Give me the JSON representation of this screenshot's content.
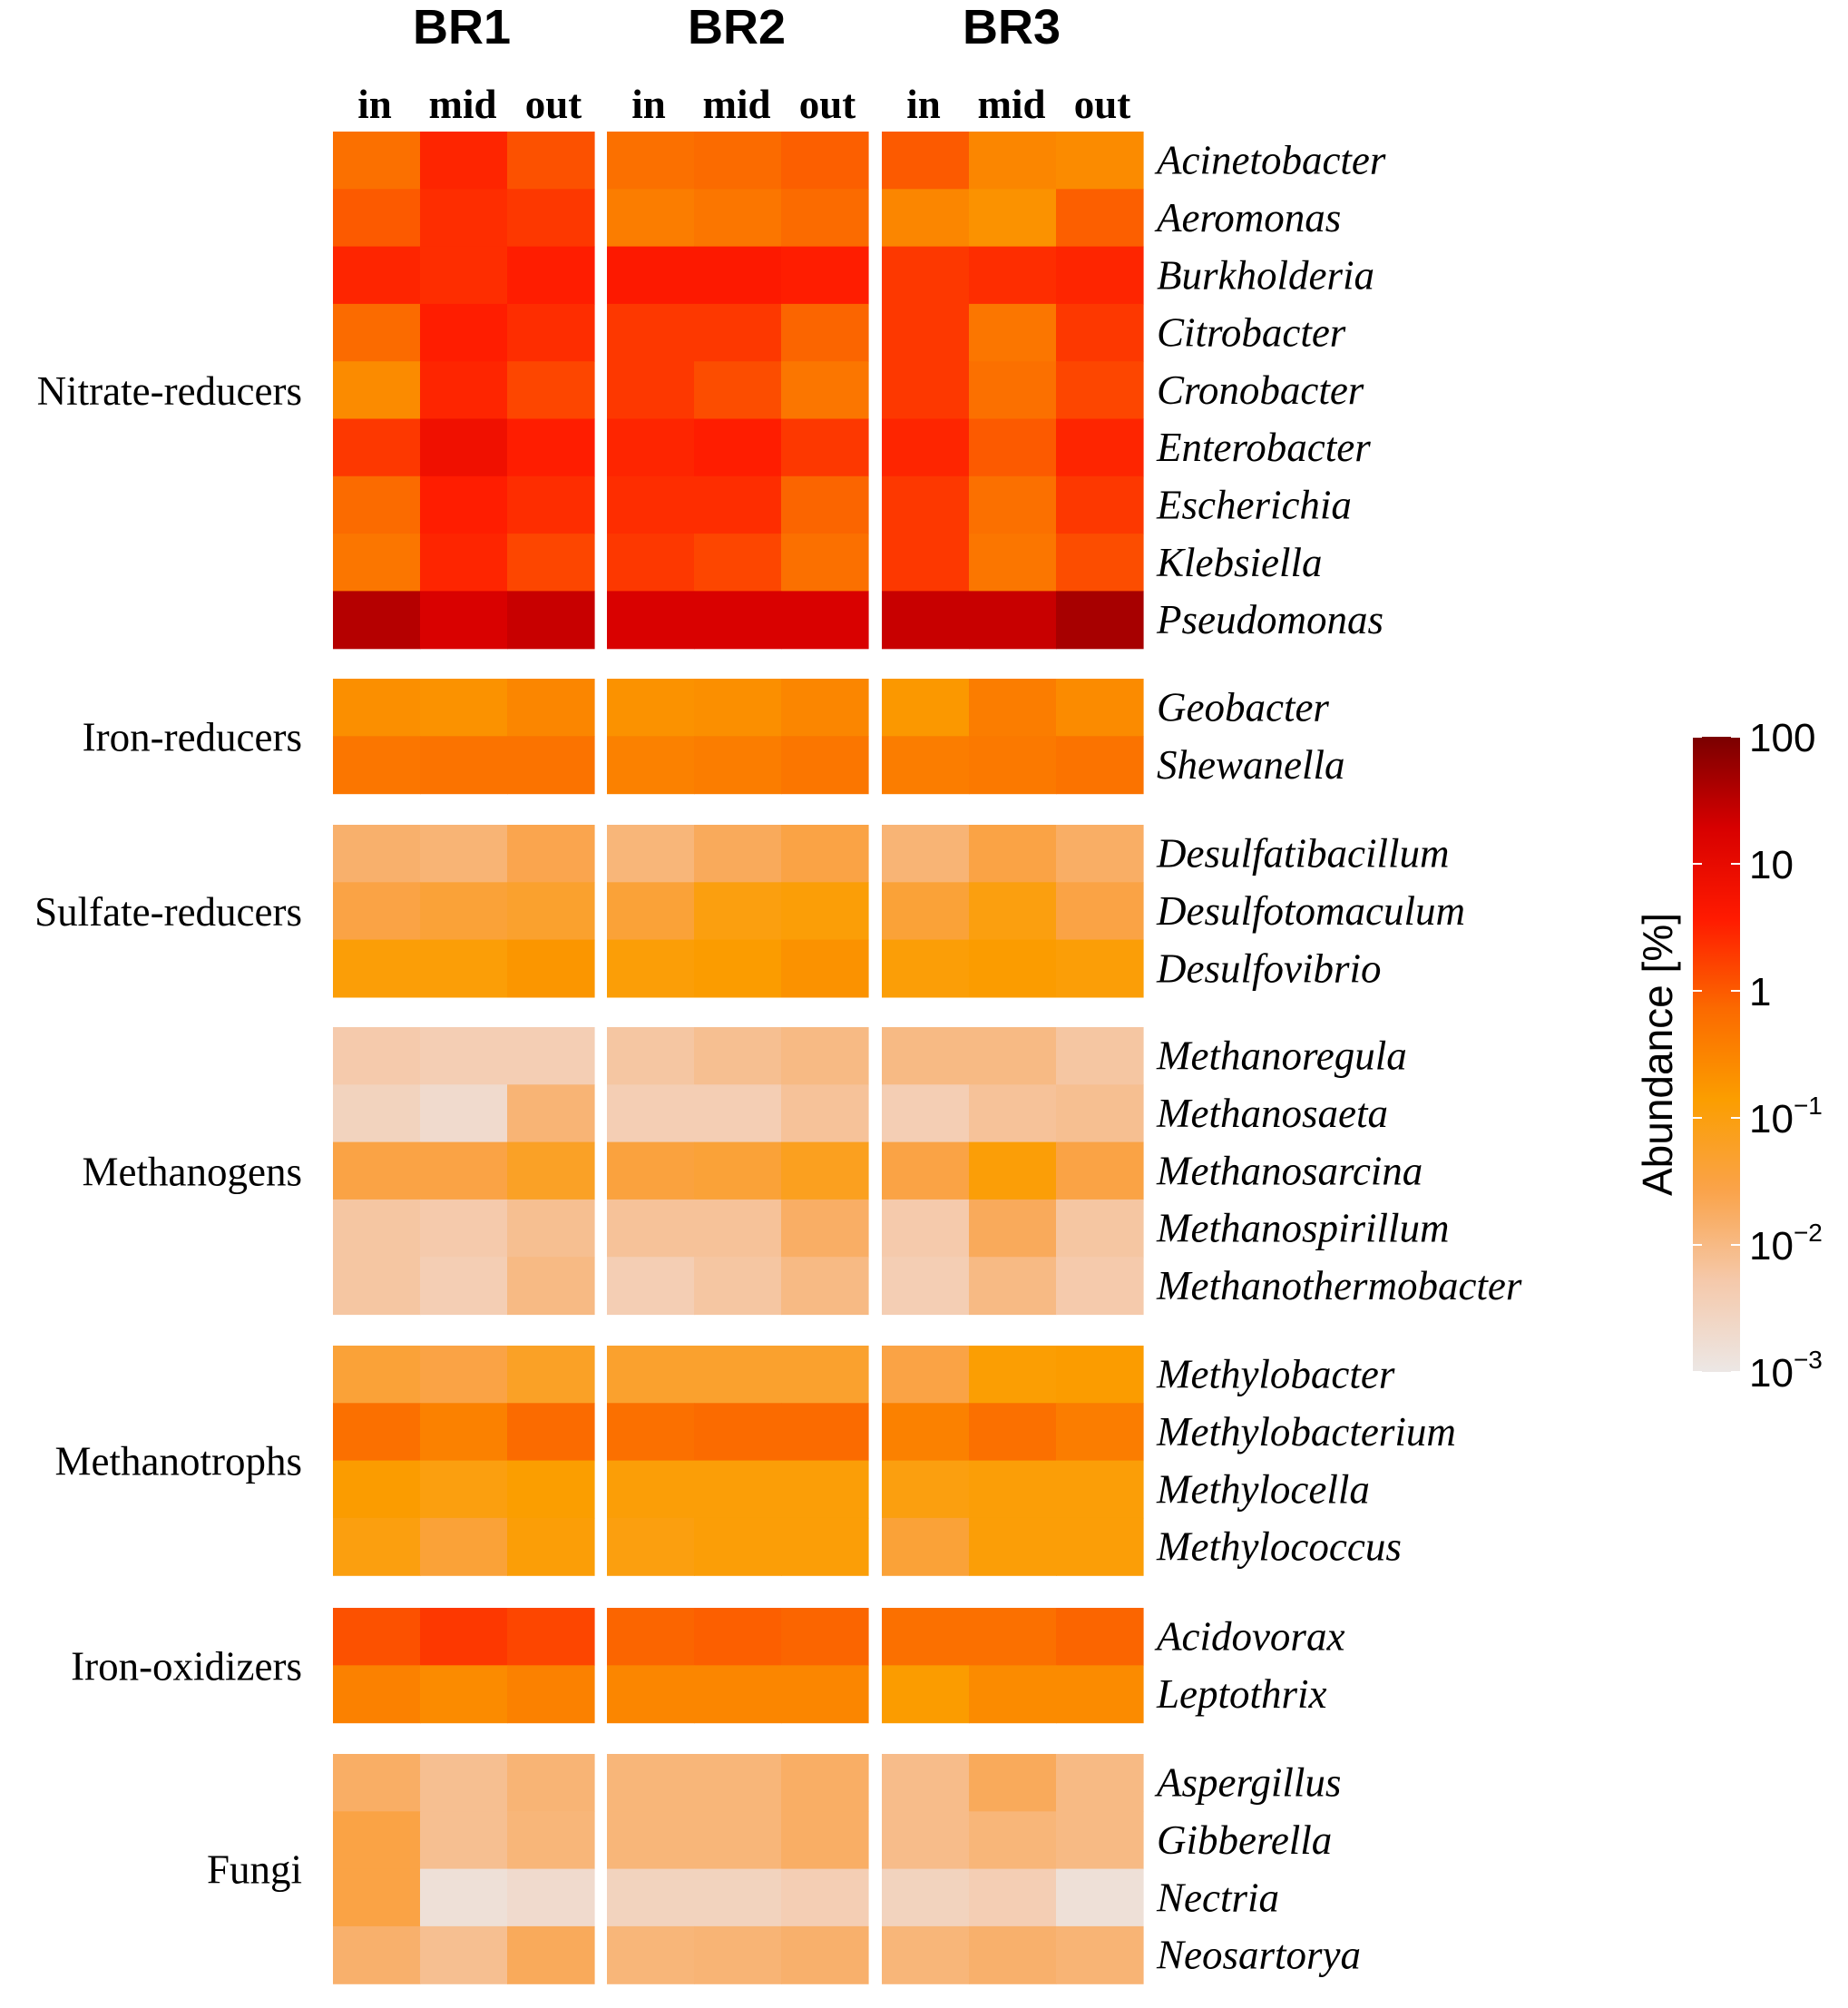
{
  "chart_data": {
    "type": "heatmap",
    "scale": "log10",
    "value_units": "Abundance [%]",
    "reactors": [
      "BR1",
      "BR2",
      "BR3"
    ],
    "positions": [
      "in",
      "mid",
      "out"
    ],
    "groups": [
      {
        "name": "Nitrate-reducers",
        "rows": [
          {
            "genus": "Acinetobacter",
            "values": [
              0.6,
              3,
              1.2,
              0.6,
              0.7,
              0.9,
              1,
              0.3,
              0.25
            ]
          },
          {
            "genus": "Aeromonas",
            "values": [
              1,
              2.5,
              2,
              0.4,
              0.5,
              0.7,
              0.3,
              0.2,
              0.9
            ]
          },
          {
            "genus": "Burkholderia",
            "values": [
              3,
              2.5,
              3.5,
              4,
              4,
              3.5,
              2,
              2.5,
              3
            ]
          },
          {
            "genus": "Citrobacter",
            "values": [
              0.7,
              3.5,
              2.5,
              2,
              2,
              0.8,
              2,
              0.5,
              2
            ]
          },
          {
            "genus": "Cronobacter",
            "values": [
              0.25,
              3,
              1.5,
              2,
              1.3,
              0.5,
              2,
              0.6,
              1.5
            ]
          },
          {
            "genus": "Enterobacter",
            "values": [
              2,
              7,
              3.5,
              3,
              3.5,
              2,
              3,
              1,
              3
            ]
          },
          {
            "genus": "Escherichia",
            "values": [
              0.7,
              3.5,
              2.5,
              2.5,
              2.5,
              0.8,
              2,
              0.6,
              2
            ]
          },
          {
            "genus": "Klebsiella",
            "values": [
              0.5,
              3,
              1.5,
              2,
              1.5,
              0.6,
              2,
              0.5,
              1.3
            ]
          },
          {
            "genus": "Pseudomonas",
            "values": [
              35,
              18,
              25,
              18,
              18,
              18,
              25,
              25,
              45
            ]
          }
        ]
      },
      {
        "name": "Iron-reducers",
        "rows": [
          {
            "genus": "Geobacter",
            "values": [
              0.22,
              0.2,
              0.3,
              0.2,
              0.22,
              0.3,
              0.17,
              0.4,
              0.25
            ]
          },
          {
            "genus": "Shewanella",
            "values": [
              0.5,
              0.55,
              0.55,
              0.35,
              0.4,
              0.5,
              0.4,
              0.45,
              0.55
            ]
          }
        ]
      },
      {
        "name": "Sulfate-reducers",
        "rows": [
          {
            "genus": "Desulfatibacillum",
            "values": [
              0.015,
              0.013,
              0.025,
              0.012,
              0.02,
              0.03,
              0.013,
              0.03,
              0.017
            ]
          },
          {
            "genus": "Desulfotomaculum",
            "values": [
              0.03,
              0.04,
              0.05,
              0.04,
              0.1,
              0.12,
              0.04,
              0.1,
              0.03
            ]
          },
          {
            "genus": "Desulfovibrio",
            "values": [
              0.12,
              0.12,
              0.18,
              0.12,
              0.15,
              0.2,
              0.12,
              0.15,
              0.12
            ]
          }
        ]
      },
      {
        "name": "Methanogens",
        "rows": [
          {
            "genus": "Methanoregula",
            "values": [
              0.005,
              0.004,
              0.004,
              0.006,
              0.008,
              0.01,
              0.01,
              0.01,
              0.006
            ]
          },
          {
            "genus": "Methanosaeta",
            "values": [
              0.003,
              0.002,
              0.013,
              0.004,
              0.004,
              0.007,
              0.004,
              0.007,
              0.008
            ]
          },
          {
            "genus": "Methanosarcina",
            "values": [
              0.03,
              0.03,
              0.06,
              0.035,
              0.04,
              0.07,
              0.03,
              0.12,
              0.03
            ]
          },
          {
            "genus": "Methanospirillum",
            "values": [
              0.006,
              0.005,
              0.008,
              0.007,
              0.007,
              0.017,
              0.005,
              0.02,
              0.006
            ]
          },
          {
            "genus": "Methanothermobacter",
            "values": [
              0.006,
              0.004,
              0.01,
              0.004,
              0.006,
              0.01,
              0.004,
              0.01,
              0.005
            ]
          }
        ]
      },
      {
        "name": "Methanotrophs",
        "rows": [
          {
            "genus": "Methylobacter",
            "values": [
              0.04,
              0.03,
              0.06,
              0.05,
              0.05,
              0.05,
              0.03,
              0.13,
              0.15
            ]
          },
          {
            "genus": "Methylobacterium",
            "values": [
              0.6,
              0.35,
              0.7,
              0.6,
              0.7,
              0.7,
              0.35,
              0.6,
              0.4
            ]
          },
          {
            "genus": "Methylocella",
            "values": [
              0.15,
              0.1,
              0.14,
              0.12,
              0.12,
              0.12,
              0.1,
              0.12,
              0.12
            ]
          },
          {
            "genus": "Methylococcus",
            "values": [
              0.1,
              0.04,
              0.12,
              0.1,
              0.12,
              0.12,
              0.04,
              0.12,
              0.12
            ]
          }
        ]
      },
      {
        "name": "Iron-oxidizers",
        "rows": [
          {
            "genus": "Acidovorax",
            "values": [
              1.2,
              2,
              1.5,
              0.8,
              0.9,
              0.8,
              0.6,
              0.6,
              0.8
            ]
          },
          {
            "genus": "Leptothrix",
            "values": [
              0.35,
              0.25,
              0.35,
              0.3,
              0.3,
              0.3,
              0.15,
              0.25,
              0.25
            ]
          }
        ]
      },
      {
        "name": "Fungi",
        "rows": [
          {
            "genus": "Aspergillus",
            "values": [
              0.017,
              0.008,
              0.013,
              0.012,
              0.012,
              0.017,
              0.009,
              0.02,
              0.01
            ]
          },
          {
            "genus": "Gibberella",
            "values": [
              0.03,
              0.008,
              0.012,
              0.012,
              0.012,
              0.017,
              0.009,
              0.012,
              0.01
            ]
          },
          {
            "genus": "Nectria",
            "values": [
              0.03,
              0.0015,
              0.002,
              0.003,
              0.003,
              0.004,
              0.003,
              0.004,
              0.0015
            ]
          },
          {
            "genus": "Neosartorya",
            "values": [
              0.015,
              0.008,
              0.02,
              0.012,
              0.013,
              0.015,
              0.012,
              0.015,
              0.013
            ]
          }
        ]
      }
    ],
    "colorbar": {
      "title": "Abundance [%]",
      "range": [
        0.001,
        100
      ],
      "tick_labels": [
        {
          "base": "100",
          "exp": ""
        },
        {
          "base": "10",
          "exp": ""
        },
        {
          "base": "1",
          "exp": ""
        },
        {
          "base": "10",
          "exp": "−1"
        },
        {
          "base": "10",
          "exp": "−2"
        },
        {
          "base": "10",
          "exp": "−3"
        }
      ],
      "colors": [
        "#ece7e5",
        "#f5c9ab",
        "#faa34a",
        "#fb9e00",
        "#fb6a00",
        "#ff1a00",
        "#d70000",
        "#7a0000"
      ]
    }
  }
}
